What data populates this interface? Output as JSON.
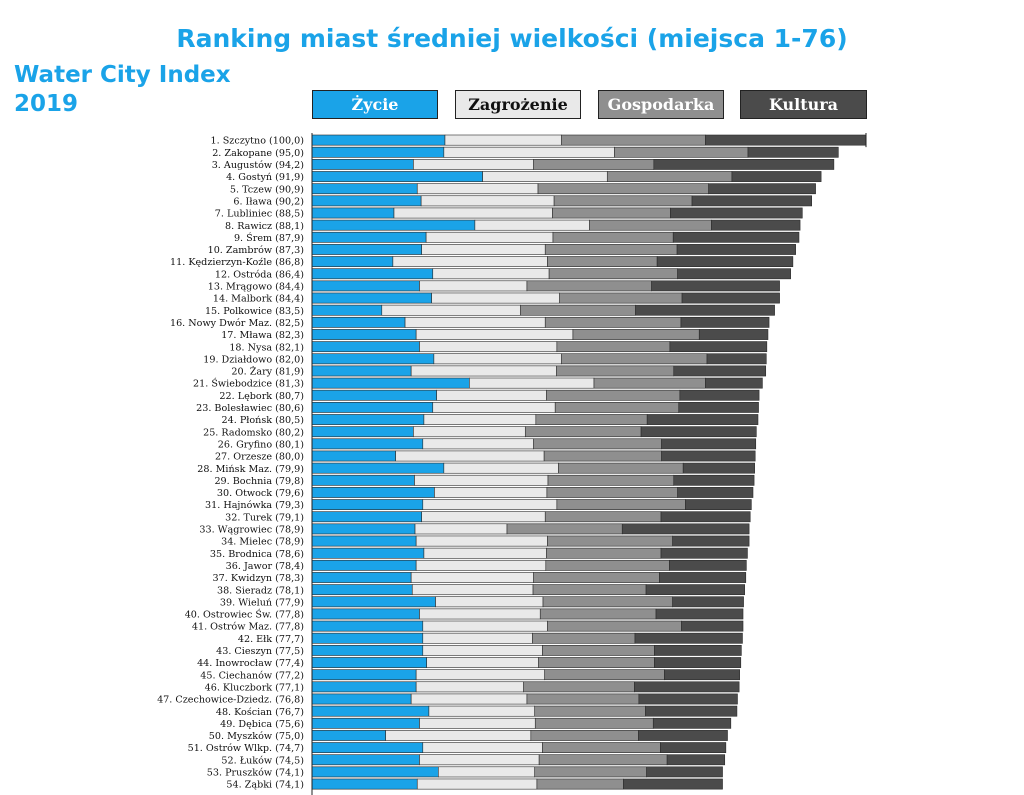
{
  "title": "Ranking miast średniej wielkości (miejsca 1-76)",
  "brand": {
    "line1": "Water City Index",
    "line2": "2019"
  },
  "colors": {
    "zycie": "#1aa3e8",
    "zagrozenie": "#e9e9e9",
    "gospodarka": "#8f8f8f",
    "kultura": "#4b4b4b"
  },
  "chart_data": {
    "type": "bar",
    "orientation": "horizontal",
    "stacked": true,
    "legend_position": "top",
    "series_names": [
      "Życie",
      "Zagrożenie",
      "Gospodarka",
      "Kultura"
    ],
    "max_total": 100,
    "rows": [
      {
        "label": "1. Szczytno (100,0)",
        "total": 100.0,
        "parts": [
          24.0,
          21.0,
          26.0,
          29.0
        ]
      },
      {
        "label": "2. Zakopane (95,0)",
        "total": 95.0,
        "parts": [
          23.8,
          30.8,
          24.1,
          16.3
        ]
      },
      {
        "label": "3. Augustów (94,2)",
        "total": 94.2,
        "parts": [
          18.3,
          21.7,
          21.7,
          32.5
        ]
      },
      {
        "label": "4. Gostyń (91,9)",
        "total": 91.9,
        "parts": [
          30.8,
          22.5,
          22.5,
          16.1
        ]
      },
      {
        "label": "5. Tczew (90,9)",
        "total": 90.9,
        "parts": [
          19.0,
          21.8,
          30.8,
          19.3
        ]
      },
      {
        "label": "6. Iława (90,2)",
        "total": 90.2,
        "parts": [
          19.7,
          24.0,
          24.9,
          21.6
        ]
      },
      {
        "label": "7. Lubliniec (88,5)",
        "total": 88.5,
        "parts": [
          14.8,
          28.6,
          21.3,
          23.8
        ]
      },
      {
        "label": "8. Rawicz (88,1)",
        "total": 88.1,
        "parts": [
          29.4,
          20.7,
          22.0,
          16.0
        ]
      },
      {
        "label": "9. Śrem (87,9)",
        "total": 87.9,
        "parts": [
          20.6,
          22.9,
          21.7,
          22.7
        ]
      },
      {
        "label": "10. Zambrów (87,3)",
        "total": 87.3,
        "parts": [
          19.8,
          22.3,
          23.8,
          21.4
        ]
      },
      {
        "label": "11. Kędzierzyn-Koźle (86,8)",
        "total": 86.8,
        "parts": [
          14.6,
          27.9,
          19.8,
          24.5
        ]
      },
      {
        "label": "12. Ostróda (86,4)",
        "total": 86.4,
        "parts": [
          21.8,
          21.0,
          23.2,
          20.4
        ]
      },
      {
        "label": "13. Mrągowo (84,4)",
        "total": 84.4,
        "parts": [
          19.4,
          19.4,
          22.5,
          23.1
        ]
      },
      {
        "label": "14. Malbork (84,4)",
        "total": 84.4,
        "parts": [
          21.6,
          23.1,
          22.1,
          17.6
        ]
      },
      {
        "label": "15. Polkowice (83,5)",
        "total": 83.5,
        "parts": [
          12.6,
          25.0,
          20.8,
          25.1
        ]
      },
      {
        "label": "16. Nowy Dwór Maz. (82,5)",
        "total": 82.5,
        "parts": [
          16.8,
          25.3,
          24.5,
          15.9
        ]
      },
      {
        "label": "17. Mława (82,3)",
        "total": 82.3,
        "parts": [
          18.8,
          28.3,
          22.8,
          12.4
        ]
      },
      {
        "label": "18. Nysa (82,1)",
        "total": 82.1,
        "parts": [
          19.4,
          24.8,
          20.4,
          17.5
        ]
      },
      {
        "label": "19. Działdowo (82,0)",
        "total": 82.0,
        "parts": [
          22.0,
          23.0,
          26.3,
          10.7
        ]
      },
      {
        "label": "20. Żary (81,9)",
        "total": 81.9,
        "parts": [
          17.9,
          26.2,
          21.2,
          16.6
        ]
      },
      {
        "label": "21. Świebodzice (81,3)",
        "total": 81.3,
        "parts": [
          28.4,
          22.5,
          20.1,
          10.3
        ]
      },
      {
        "label": "22. Lębork (80,7)",
        "total": 80.7,
        "parts": [
          22.5,
          19.8,
          24.1,
          14.3
        ]
      },
      {
        "label": "23. Bolesławiec (80,6)",
        "total": 80.6,
        "parts": [
          21.8,
          22.1,
          22.3,
          14.4
        ]
      },
      {
        "label": "24. Płońsk (80,5)",
        "total": 80.5,
        "parts": [
          20.2,
          20.2,
          20.1,
          20.0
        ]
      },
      {
        "label": "25. Radomsko (80,2)",
        "total": 80.2,
        "parts": [
          18.3,
          20.2,
          20.9,
          20.8
        ]
      },
      {
        "label": "26. Gryfino (80,1)",
        "total": 80.1,
        "parts": [
          20.0,
          20.0,
          23.1,
          17.0
        ]
      },
      {
        "label": "27. Orzesze (80,0)",
        "total": 80.0,
        "parts": [
          15.1,
          26.8,
          21.2,
          16.9
        ]
      },
      {
        "label": "28. Mińsk Maz. (79,9)",
        "total": 79.9,
        "parts": [
          23.8,
          20.7,
          22.5,
          12.9
        ]
      },
      {
        "label": "29. Bochnia (79,8)",
        "total": 79.8,
        "parts": [
          18.5,
          24.1,
          22.7,
          14.5
        ]
      },
      {
        "label": "30. Otwock (79,6)",
        "total": 79.6,
        "parts": [
          22.1,
          20.3,
          23.6,
          13.6
        ]
      },
      {
        "label": "31. Hajnówka (79,3)",
        "total": 79.3,
        "parts": [
          20.0,
          24.2,
          23.2,
          11.9
        ]
      },
      {
        "label": "32. Turek (79,1)",
        "total": 79.1,
        "parts": [
          19.8,
          22.3,
          20.9,
          16.1
        ]
      },
      {
        "label": "33. Wągrowiec (78,9)",
        "total": 78.9,
        "parts": [
          18.6,
          16.6,
          20.8,
          22.9
        ]
      },
      {
        "label": "34. Mielec (78,9)",
        "total": 78.9,
        "parts": [
          18.8,
          23.7,
          22.6,
          13.8
        ]
      },
      {
        "label": "35. Brodnica (78,6)",
        "total": 78.6,
        "parts": [
          20.2,
          22.1,
          20.7,
          15.6
        ]
      },
      {
        "label": "36. Jawor (78,4)",
        "total": 78.4,
        "parts": [
          18.8,
          23.4,
          22.3,
          13.9
        ]
      },
      {
        "label": "37. Kwidzyn (78,3)",
        "total": 78.3,
        "parts": [
          17.9,
          22.1,
          22.7,
          15.6
        ]
      },
      {
        "label": "38. Sieradz (78,1)",
        "total": 78.1,
        "parts": [
          18.1,
          21.8,
          20.4,
          17.8
        ]
      },
      {
        "label": "39. Wieluń (77,9)",
        "total": 77.9,
        "parts": [
          22.3,
          19.4,
          23.4,
          12.8
        ]
      },
      {
        "label": "40. Ostrowiec Św. (77,8)",
        "total": 77.8,
        "parts": [
          19.4,
          21.8,
          20.9,
          15.7
        ]
      },
      {
        "label": "41. Ostrów Maz. (77,8)",
        "total": 77.8,
        "parts": [
          20.0,
          22.5,
          24.2,
          11.1
        ]
      },
      {
        "label": "42. Ełk (77,7)",
        "total": 77.7,
        "parts": [
          20.0,
          19.8,
          18.5,
          19.4
        ]
      },
      {
        "label": "43. Cieszyn (77,5)",
        "total": 77.5,
        "parts": [
          20.0,
          21.6,
          20.2,
          15.7
        ]
      },
      {
        "label": "44. Inowrocław (77,4)",
        "total": 77.4,
        "parts": [
          20.7,
          20.2,
          20.9,
          15.6
        ]
      },
      {
        "label": "45. Ciechanów (77,2)",
        "total": 77.2,
        "parts": [
          18.8,
          23.2,
          21.6,
          13.6
        ]
      },
      {
        "label": "46. Kluczbork (77,1)",
        "total": 77.1,
        "parts": [
          18.8,
          19.4,
          20.0,
          18.9
        ]
      },
      {
        "label": "47. Czechowice-Dziedz. (76,8)",
        "total": 76.8,
        "parts": [
          17.9,
          20.9,
          20.2,
          17.8
        ]
      },
      {
        "label": "48. Kościan (76,7)",
        "total": 76.7,
        "parts": [
          21.1,
          19.1,
          20.0,
          16.5
        ]
      },
      {
        "label": "49. Dębica (75,6)",
        "total": 75.6,
        "parts": [
          19.4,
          20.9,
          21.3,
          14.0
        ]
      },
      {
        "label": "50. Myszków (75,0)",
        "total": 75.0,
        "parts": [
          13.3,
          26.2,
          19.4,
          16.1
        ]
      },
      {
        "label": "51. Ostrów Wlkp. (74,7)",
        "total": 74.7,
        "parts": [
          20.0,
          21.6,
          21.3,
          11.8
        ]
      },
      {
        "label": "52. Łuków (74,5)",
        "total": 74.5,
        "parts": [
          19.4,
          21.6,
          23.1,
          10.4
        ]
      },
      {
        "label": "53. Pruszków (74,1)",
        "total": 74.1,
        "parts": [
          22.8,
          17.4,
          20.2,
          13.7
        ]
      },
      {
        "label": "54. Ząbki (74,1)",
        "total": 74.1,
        "parts": [
          19.0,
          21.6,
          15.6,
          17.9
        ]
      }
    ]
  }
}
